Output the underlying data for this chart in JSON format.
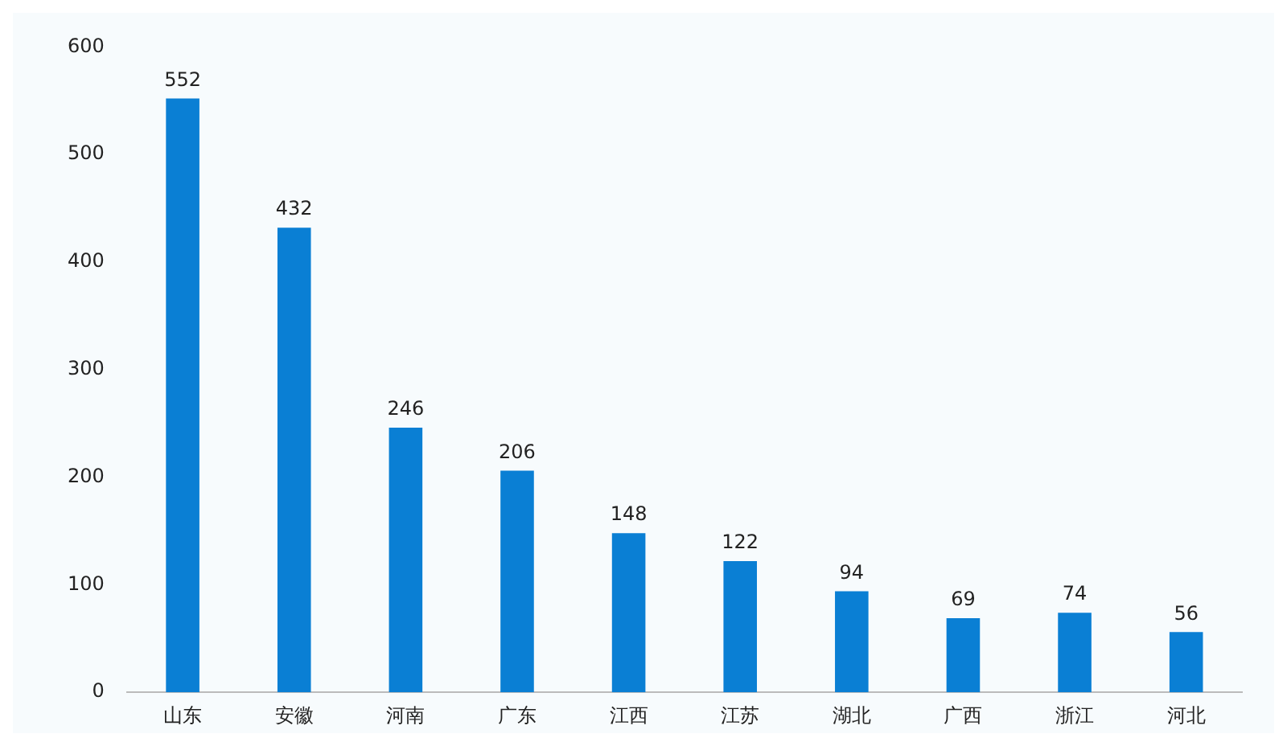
{
  "chart_data": {
    "type": "bar",
    "categories": [
      "山东",
      "安徽",
      "河南",
      "广东",
      "江西",
      "江苏",
      "湖北",
      "广西",
      "浙江",
      "河北"
    ],
    "values": [
      552,
      432,
      246,
      206,
      148,
      122,
      94,
      69,
      74,
      56
    ],
    "color": "#0a7fd4",
    "ylim": [
      0,
      600
    ],
    "yticks": [
      0,
      100,
      200,
      300,
      400,
      500,
      600
    ],
    "grid": false,
    "legend": false,
    "data_labels": true
  }
}
